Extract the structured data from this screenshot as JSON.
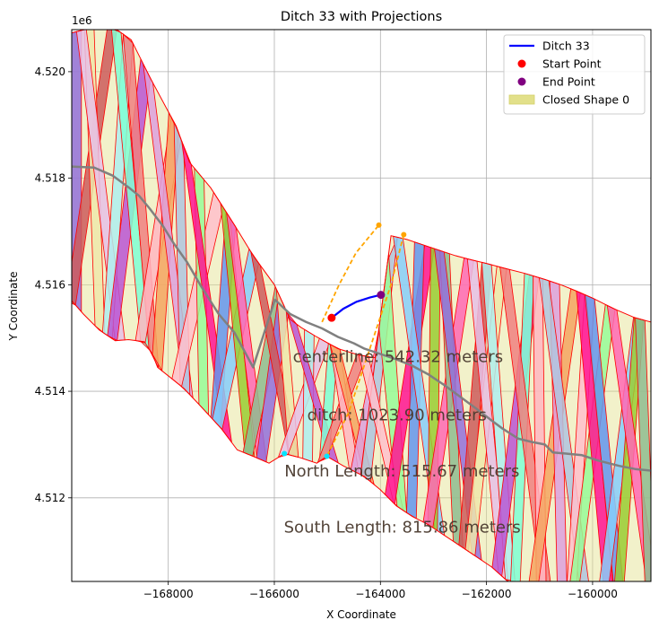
{
  "chart_data": {
    "type": "line",
    "title": "Ditch 33 with Projections",
    "xlabel": "X Coordinate",
    "ylabel": "Y Coordinate",
    "y_offset_label": "1e6",
    "xlim": [
      -169820,
      -158900
    ],
    "ylim": [
      4.51043,
      4.52079
    ],
    "y_scale": 1000000,
    "grid": true,
    "legend_position": "top-right",
    "x_ticks": [
      -168000,
      -166000,
      -164000,
      -162000,
      -160000
    ],
    "x_tick_labels": [
      "−168000",
      "−166000",
      "−164000",
      "−162000",
      "−160000"
    ],
    "y_ticks": [
      4.512,
      4.514,
      4.516,
      4.518,
      4.52
    ],
    "y_tick_labels": [
      "4.512",
      "4.514",
      "4.516",
      "4.518",
      "4.520"
    ],
    "legend": [
      {
        "label": "Ditch 33",
        "kind": "line",
        "color": "#0000ff"
      },
      {
        "label": "Start Point",
        "kind": "point",
        "color": "#ff0000"
      },
      {
        "label": "End Point",
        "kind": "point",
        "color": "#800080"
      },
      {
        "label": "Closed Shape 0",
        "kind": "patch",
        "color": "#e2e08a"
      }
    ],
    "series": [
      {
        "name": "Ditch 33",
        "color": "#0000ff",
        "points": [
          [
            -164920,
            4.51538
          ],
          [
            -164700,
            4.51555
          ],
          [
            -164450,
            4.51568
          ],
          [
            -164200,
            4.51576
          ],
          [
            -163990,
            4.51581
          ]
        ]
      }
    ],
    "start_point": {
      "label": "Start Point",
      "x": -164920,
      "y": 4.51538,
      "color": "#ff0000"
    },
    "end_point": {
      "label": "End Point",
      "x": -163990,
      "y": 4.51581,
      "color": "#800080"
    },
    "centerline": {
      "color": "#808080",
      "points": [
        [
          -169820,
          4.51822
        ],
        [
          -169400,
          4.5182
        ],
        [
          -169050,
          4.51805
        ],
        [
          -168750,
          4.51783
        ],
        [
          -168550,
          4.51767
        ],
        [
          -168350,
          4.51743
        ],
        [
          -168100,
          4.5171
        ],
        [
          -167900,
          4.51678
        ],
        [
          -167650,
          4.51643
        ],
        [
          -167400,
          4.516
        ],
        [
          -167050,
          4.51545
        ],
        [
          -166750,
          4.5151
        ],
        [
          -166400,
          4.51445
        ],
        [
          -165990,
          4.51572
        ],
        [
          -165700,
          4.51545
        ],
        [
          -165400,
          4.5153
        ],
        [
          -165100,
          4.51518
        ],
        [
          -164800,
          4.51502
        ],
        [
          -164500,
          4.5149
        ],
        [
          -164300,
          4.5148
        ],
        [
          -164000,
          4.5147
        ],
        [
          -163700,
          4.5146
        ],
        [
          -163400,
          4.51448
        ],
        [
          -163100,
          4.51432
        ],
        [
          -162800,
          4.51412
        ],
        [
          -162500,
          4.5139
        ],
        [
          -162200,
          4.51368
        ],
        [
          -161900,
          4.51345
        ],
        [
          -161700,
          4.5133
        ],
        [
          -161400,
          4.51311
        ],
        [
          -161150,
          4.51305
        ],
        [
          -160900,
          4.513
        ],
        [
          -160750,
          4.51285
        ],
        [
          -160500,
          4.51283
        ],
        [
          -160200,
          4.5128
        ],
        [
          -159900,
          4.5127
        ],
        [
          -159500,
          4.5126
        ],
        [
          -159200,
          4.51254
        ],
        [
          -158900,
          4.51251
        ]
      ]
    },
    "north_projection": {
      "color": "#ffa500",
      "points": [
        [
          -165100,
          4.5153
        ],
        [
          -164780,
          4.516
        ],
        [
          -164460,
          4.5166
        ],
        [
          -164030,
          4.51712
        ]
      ],
      "endpoint": [
        -164030,
        4.51712
      ]
    },
    "south_projection": {
      "color": "#ffa500",
      "points": [
        [
          -163560,
          4.51694
        ],
        [
          -163800,
          4.516
        ],
        [
          -164200,
          4.5148
        ],
        [
          -164600,
          4.5136
        ],
        [
          -165000,
          4.5128
        ]
      ],
      "endpoint": [
        -163560,
        4.51694
      ]
    },
    "cyan_points": [
      [
        -165810,
        4.51283
      ],
      [
        -165010,
        4.51278
      ]
    ],
    "annotations": [
      {
        "text": "centerline: 542.32 meters",
        "x": -165650,
        "y": 4.51455
      },
      {
        "text": "ditch: 1023.90 meters",
        "x": -165380,
        "y": 4.51345
      },
      {
        "text": "North Length: 515.67 meters",
        "x": -165810,
        "y": 4.5124
      },
      {
        "text": "South Length: 815.86 meters",
        "x": -165820,
        "y": 4.51135
      }
    ],
    "boundary": {
      "color": "#ff0000",
      "fill": "#e2e08a",
      "top": [
        [
          -169820,
          4.52073
        ],
        [
          -169500,
          4.52081
        ],
        [
          -169000,
          4.52081
        ],
        [
          -168700,
          4.5206
        ],
        [
          -168350,
          4.5199
        ],
        [
          -168000,
          4.51925
        ],
        [
          -167850,
          4.51898
        ],
        [
          -167600,
          4.5183
        ],
        [
          -167200,
          4.51782
        ],
        [
          -166750,
          4.51712
        ],
        [
          -166400,
          4.51655
        ],
        [
          -166000,
          4.516
        ],
        [
          -165700,
          4.51535
        ],
        [
          -165500,
          4.5152
        ],
        [
          -165200,
          4.51502
        ],
        [
          -164800,
          4.5148
        ],
        [
          -164400,
          4.51468
        ],
        [
          -164100,
          4.51463
        ],
        [
          -163800,
          4.51692
        ],
        [
          -163500,
          4.51685
        ],
        [
          -163200,
          4.51675
        ],
        [
          -162900,
          4.51665
        ],
        [
          -162600,
          4.51655
        ],
        [
          -162300,
          4.51647
        ],
        [
          -162000,
          4.5164
        ],
        [
          -161700,
          4.51632
        ],
        [
          -161300,
          4.51622
        ],
        [
          -160900,
          4.5161
        ],
        [
          -160600,
          4.516
        ],
        [
          -160300,
          4.51588
        ],
        [
          -160000,
          4.51575
        ],
        [
          -159600,
          4.51555
        ],
        [
          -159200,
          4.51538
        ],
        [
          -158900,
          4.5153
        ]
      ],
      "bottom": [
        [
          -169820,
          4.5157
        ],
        [
          -169600,
          4.51545
        ],
        [
          -169300,
          4.51515
        ],
        [
          -169000,
          4.51495
        ],
        [
          -168750,
          4.51497
        ],
        [
          -168450,
          4.51493
        ],
        [
          -168300,
          4.5147
        ],
        [
          -168200,
          4.51445
        ],
        [
          -167950,
          4.51425
        ],
        [
          -167700,
          4.51405
        ],
        [
          -167350,
          4.51368
        ],
        [
          -167000,
          4.5133
        ],
        [
          -166700,
          4.5129
        ],
        [
          -166400,
          4.51278
        ],
        [
          -166100,
          4.51265
        ],
        [
          -165810,
          4.51283
        ],
        [
          -165500,
          4.51275
        ],
        [
          -165200,
          4.51265
        ],
        [
          -165010,
          4.51278
        ],
        [
          -164700,
          4.5126
        ],
        [
          -164300,
          4.5124
        ],
        [
          -164000,
          4.51215
        ],
        [
          -163700,
          4.51185
        ],
        [
          -163400,
          4.51165
        ],
        [
          -163100,
          4.5115
        ],
        [
          -162800,
          4.5113
        ],
        [
          -162500,
          4.5111
        ],
        [
          -162200,
          4.5109
        ],
        [
          -161900,
          4.5107
        ],
        [
          -161600,
          4.51043
        ],
        [
          -158900,
          4.51043
        ]
      ]
    },
    "fill_palette": [
      "#9370db",
      "#e6c0e6",
      "#7fffd4",
      "#f4a460",
      "#ffc0cb",
      "#6495ed",
      "#ff69b4",
      "#cd5c5c",
      "#afeeee",
      "#f08080",
      "#dda0dd",
      "#98fb98",
      "#87cefa",
      "#8fbc8f",
      "#eee8aa",
      "#ba55d3",
      "#ffb6c1",
      "#b0c4de",
      "#ff1493",
      "#9acd32"
    ]
  }
}
